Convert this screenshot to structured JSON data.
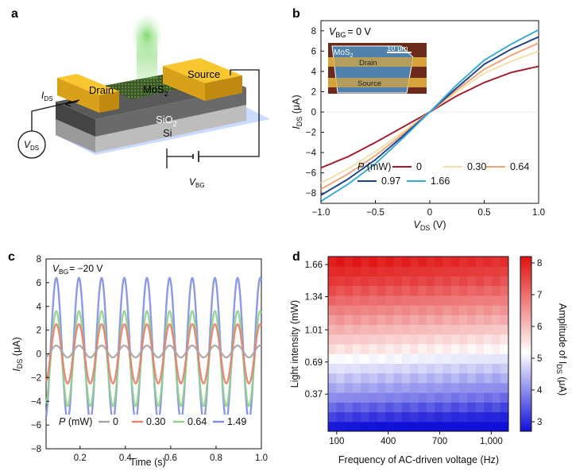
{
  "panels": {
    "a": {
      "letter": "a",
      "labels": {
        "drain": "Drain",
        "source": "Source",
        "channel": "MoS",
        "channel_sub": "2",
        "oxide": "SiO",
        "oxide_sub": "2",
        "substrate": "Si",
        "ids": "I",
        "ids_sub": "DS",
        "vds": "V",
        "vds_sub": "DS",
        "vbg": "V",
        "vbg_sub": "BG"
      }
    },
    "b": {
      "letter": "b",
      "annotation": "= 0 V",
      "annot_v": "V",
      "annot_sub": "BG",
      "inset": {
        "material": "MoS",
        "material_sub": "2",
        "scale": "10 μm",
        "drain": "Drain",
        "source": "Source"
      },
      "legend_title": "P (mW)"
    },
    "c": {
      "letter": "c",
      "annotation": "= −20 V",
      "annot_v": "V",
      "annot_sub": "BG",
      "legend_title": "P (mW)"
    },
    "d": {
      "letter": "d",
      "colorbar_label": "Amplitude of I",
      "colorbar_sub": "DS",
      "colorbar_unit": " (μA)"
    }
  },
  "chart_data": [
    {
      "id": "b",
      "type": "line",
      "xlabel": "V",
      "xlabel_sub": "DS",
      "xlabel_unit": " (V)",
      "ylabel": "I",
      "ylabel_sub": "DS",
      "ylabel_unit": " (μA)",
      "xlim": [
        -1.0,
        1.0
      ],
      "ylim": [
        -9,
        9
      ],
      "x_ticks": [
        "−1.0",
        "−0.5",
        "0",
        "0.5",
        "1.0"
      ],
      "x_tick_values": [
        -1.0,
        -0.5,
        0,
        0.5,
        1.0
      ],
      "y_ticks": [
        "−8",
        "−6",
        "−4",
        "−2",
        "0",
        "2",
        "4",
        "6",
        "8"
      ],
      "y_tick_values": [
        -8,
        -6,
        -4,
        -2,
        0,
        2,
        4,
        6,
        8
      ],
      "x": [
        -1.0,
        -0.75,
        -0.5,
        -0.25,
        0,
        0.25,
        0.5,
        0.75,
        1.0
      ],
      "series": [
        {
          "name": "0",
          "color": "#a0182a",
          "values": [
            -5.5,
            -4.4,
            -3.0,
            -1.5,
            0,
            1.6,
            2.9,
            3.9,
            4.5
          ]
        },
        {
          "name": "0.30",
          "color": "#f2dfa6",
          "values": [
            -7.0,
            -5.6,
            -3.9,
            -2.0,
            0,
            2.0,
            3.8,
            5.0,
            6.0
          ]
        },
        {
          "name": "0.64",
          "color": "#f0a276",
          "values": [
            -7.6,
            -6.1,
            -4.3,
            -2.2,
            0,
            2.2,
            4.2,
            5.6,
            6.8
          ]
        },
        {
          "name": "0.97",
          "color": "#1c3f86",
          "values": [
            -8.2,
            -6.6,
            -4.7,
            -2.4,
            0,
            2.4,
            4.7,
            6.2,
            7.4
          ]
        },
        {
          "name": "1.66",
          "color": "#36a9d8",
          "values": [
            -8.8,
            -7.1,
            -5.1,
            -2.6,
            0,
            2.7,
            5.1,
            6.7,
            8.1
          ]
        }
      ]
    },
    {
      "id": "c",
      "type": "line",
      "xlabel": "Time (s)",
      "ylabel": "I",
      "ylabel_sub": "DS",
      "ylabel_unit": " (μA)",
      "xlim": [
        0.05,
        1.0
      ],
      "ylim": [
        -8,
        8
      ],
      "x_ticks": [
        "0.2",
        "0.4",
        "0.6",
        "0.8",
        "1.0"
      ],
      "x_tick_values": [
        0.2,
        0.4,
        0.6,
        0.8,
        1.0
      ],
      "y_ticks": [
        "−8",
        "−6",
        "−4",
        "−2",
        "0",
        "2",
        "4",
        "6",
        "8"
      ],
      "y_tick_values": [
        -8,
        -6,
        -4,
        -2,
        0,
        2,
        4,
        6,
        8
      ],
      "frequency_hz": 10,
      "series": [
        {
          "name": "0",
          "color": "#a6a6a6",
          "amplitude": 0.5,
          "offset": 0.2
        },
        {
          "name": "0.30",
          "color": "#e8806e",
          "amplitude": 2.5,
          "offset": 0.0
        },
        {
          "name": "0.64",
          "color": "#8fd18a",
          "amplitude": 4.0,
          "offset": -0.4
        },
        {
          "name": "1.49",
          "color": "#7f8fe0",
          "amplitude": 6.0,
          "offset": 0.4
        }
      ]
    },
    {
      "id": "d",
      "type": "heatmap",
      "xlabel": "Frequency of AC-driven voltage (Hz)",
      "ylabel": "Light intensity (mW)",
      "xlim": [
        50,
        1100
      ],
      "x_ticks": [
        "100",
        "400",
        "700",
        "1,000"
      ],
      "x_tick_values": [
        100,
        400,
        700,
        1000
      ],
      "ylim": [
        0.0,
        1.74
      ],
      "y_ticks": [
        "0.37",
        "0.69",
        "1.01",
        "1.34",
        "1.66"
      ],
      "y_tick_values": [
        0.37,
        0.69,
        1.01,
        1.34,
        1.66
      ],
      "colorbar": {
        "min": 2.7,
        "max": 8.2,
        "ticks": [
          3,
          4,
          5,
          6,
          7,
          8
        ],
        "colors": [
          "#1010d8",
          "#ffffff",
          "#e01010"
        ],
        "center": 5.2
      },
      "rows_bottom_to_top": [
        2.8,
        3.2,
        3.6,
        4.0,
        4.3,
        4.6,
        4.9,
        5.2,
        5.6,
        5.9,
        6.2,
        6.5,
        6.8,
        7.1,
        7.4,
        7.7,
        7.9,
        8.1
      ],
      "column_drop": 0.3
    }
  ]
}
